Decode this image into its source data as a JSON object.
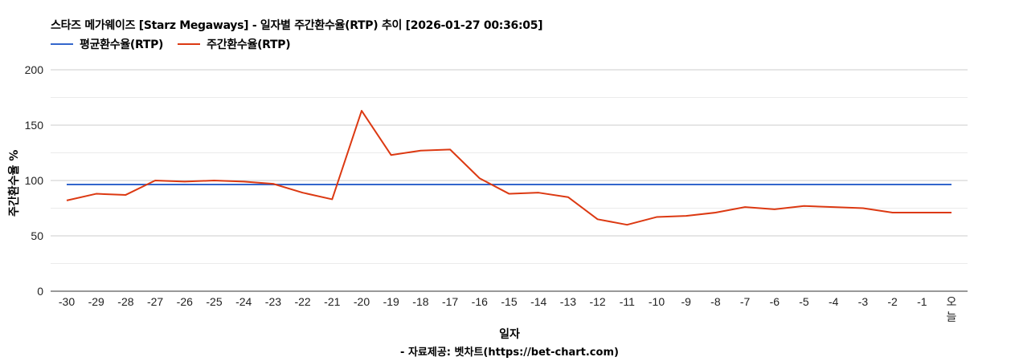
{
  "header": {
    "title": "스타즈 메가웨이즈 [Starz Megaways] - 일자별 주간환수율(RTP) 추이 [2026-01-27 00:36:05]"
  },
  "legend": [
    {
      "label": "평균환수율(RTP)",
      "color": "#3366cc"
    },
    {
      "label": "주간환수율(RTP)",
      "color": "#dc3912"
    }
  ],
  "axes": {
    "y_title": "주간환수율 %",
    "x_title": "일자",
    "y_ticks": [
      "200",
      "150",
      "100",
      "50",
      "0"
    ]
  },
  "footer": {
    "source": "- 자료제공: 벳차트(https://bet-chart.com)"
  },
  "chart_data": {
    "type": "line",
    "title": "스타즈 메가웨이즈 [Starz Megaways] - 일자별 주간환수율(RTP) 추이 [2026-01-27 00:36:05]",
    "xlabel": "일자",
    "ylabel": "주간환수율 %",
    "ylim": [
      0,
      200
    ],
    "yticks": [
      0,
      50,
      100,
      150,
      200
    ],
    "grid": true,
    "legend_position": "top",
    "categories": [
      "-30",
      "-29",
      "-28",
      "-27",
      "-26",
      "-25",
      "-24",
      "-23",
      "-22",
      "-21",
      "-20",
      "-19",
      "-18",
      "-17",
      "-16",
      "-15",
      "-14",
      "-13",
      "-12",
      "-11",
      "-10",
      "-9",
      "-8",
      "-7",
      "-6",
      "-5",
      "-4",
      "-3",
      "-2",
      "-1",
      "오늘"
    ],
    "series": [
      {
        "name": "평균환수율(RTP)",
        "color": "#3366cc",
        "values": [
          96.4,
          96.4,
          96.4,
          96.4,
          96.4,
          96.4,
          96.4,
          96.4,
          96.4,
          96.4,
          96.4,
          96.4,
          96.4,
          96.4,
          96.4,
          96.4,
          96.4,
          96.4,
          96.4,
          96.4,
          96.4,
          96.4,
          96.4,
          96.4,
          96.4,
          96.4,
          96.4,
          96.4,
          96.4,
          96.4,
          96.4
        ]
      },
      {
        "name": "주간환수율(RTP)",
        "color": "#dc3912",
        "values": [
          82,
          88,
          87,
          100,
          99,
          100,
          99,
          97,
          89,
          83,
          163,
          123,
          127,
          128,
          102,
          88,
          89,
          85,
          65,
          60,
          67,
          68,
          71,
          76,
          74,
          77,
          76,
          75,
          71,
          71,
          71
        ]
      }
    ]
  }
}
